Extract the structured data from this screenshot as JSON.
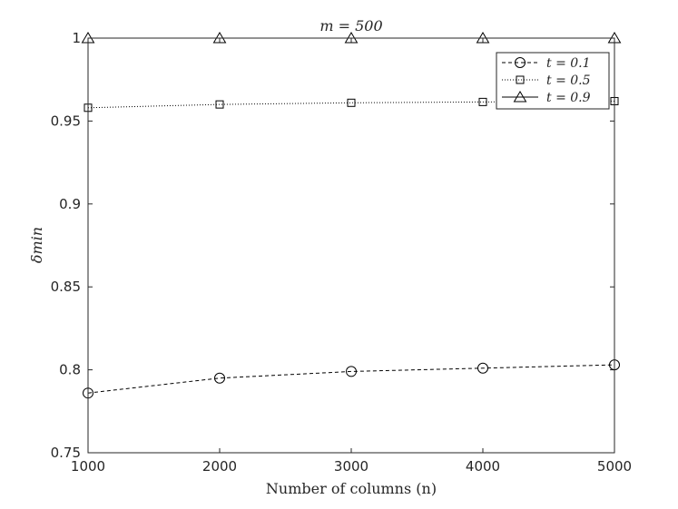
{
  "chart_data": {
    "type": "line",
    "title": "m = 500",
    "xlabel": "Number of columns (n)",
    "ylabel": "δmin",
    "xlim": [
      1000,
      5000
    ],
    "ylim": [
      0.75,
      1.0
    ],
    "x_ticks": [
      1000,
      2000,
      3000,
      4000,
      5000
    ],
    "y_ticks": [
      0.75,
      0.8,
      0.85,
      0.9,
      0.95,
      1
    ],
    "x_tick_labels": [
      "1000",
      "2000",
      "3000",
      "4000",
      "5000"
    ],
    "y_tick_labels": [
      "0.75",
      "0.8",
      "0.85",
      "0.9",
      "0.95",
      "1"
    ],
    "grid": false,
    "legend_position": "top-right",
    "x": [
      1000,
      2000,
      3000,
      4000,
      5000
    ],
    "series": [
      {
        "name": "t = 0.1",
        "values": [
          0.786,
          0.795,
          0.799,
          0.801,
          0.803
        ],
        "marker": "circle",
        "line_style": "dashed",
        "color": "#000000"
      },
      {
        "name": "t = 0.5",
        "values": [
          0.958,
          0.96,
          0.961,
          0.9615,
          0.962
        ],
        "marker": "square",
        "line_style": "dotted",
        "color": "#000000"
      },
      {
        "name": "t = 0.9",
        "values": [
          1.0,
          1.0,
          1.0,
          1.0,
          1.0
        ],
        "marker": "triangle",
        "line_style": "solid",
        "color": "#000000"
      }
    ]
  }
}
